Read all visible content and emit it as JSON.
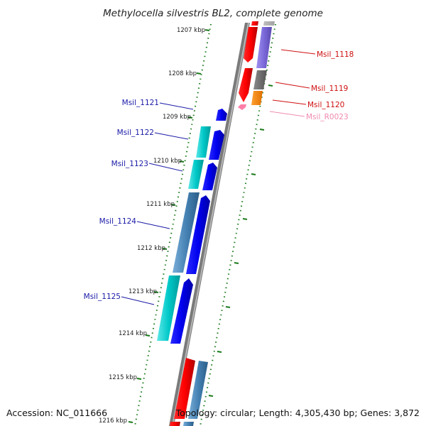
{
  "title": "Methylocella silvestris BL2, complete genome",
  "accession": "Accession: NC_011666",
  "topology": "Topology: circular; Length: 4,305,430 bp; Genes: 3,872",
  "ticks": [
    "1207 kbp",
    "1208 kbp",
    "1209 kbp",
    "1210 kbp",
    "1211 kbp",
    "1212 kbp",
    "1213 kbp",
    "1214 kbp",
    "1215 kbp",
    "1216 kbp"
  ],
  "colors": {
    "red": "#ff0000",
    "slate": "#7a68d8",
    "gray": "#707070",
    "orange": "#ff8c00",
    "pink": "#ff7fa8",
    "cyan": "#00c8c8",
    "blue": "#0000ee",
    "steel": "#4682b4",
    "tick_green": "#1a7a1a",
    "label_red": "#d01010",
    "label_blue": "#1a1aa8",
    "label_pink": "#f08ab0"
  },
  "genes": [
    {
      "name": "Msil_1118",
      "strand": "reverse",
      "color": "red"
    },
    {
      "name": "Msil_1119",
      "strand": "reverse",
      "color": "red"
    },
    {
      "name": "Msil_1120",
      "strand": "reverse",
      "color": "orange"
    },
    {
      "name": "Msil_R0023",
      "strand": "reverse",
      "color": "pink"
    },
    {
      "name": "Msil_1121",
      "strand": "forward",
      "color": "blue"
    },
    {
      "name": "Msil_1122",
      "strand": "forward",
      "color": "cyan"
    },
    {
      "name": "Msil_1123",
      "strand": "forward",
      "color": "cyan"
    },
    {
      "name": "Msil_1124",
      "strand": "forward",
      "color": "steel"
    },
    {
      "name": "Msil_1125",
      "strand": "forward",
      "color": "cyan"
    }
  ]
}
